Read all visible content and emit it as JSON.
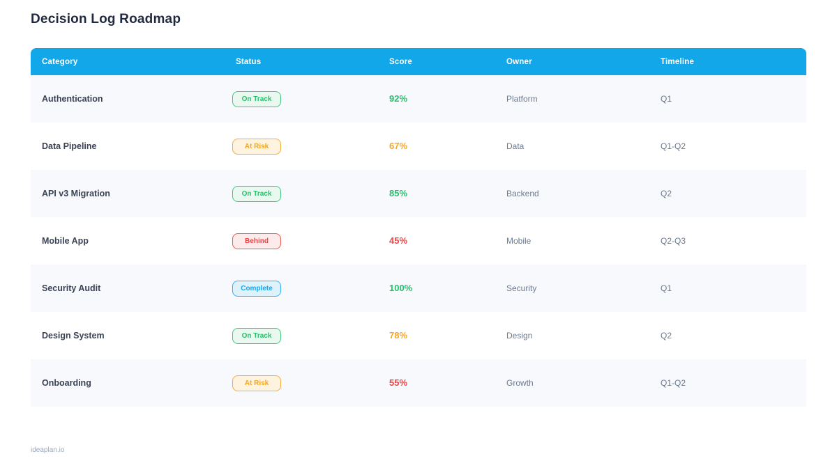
{
  "page": {
    "title": "Decision Log Roadmap",
    "footer": "ideaplan.io"
  },
  "colors": {
    "header_background": "#12a7e9",
    "row_stripe": "#f7f9fc",
    "status_green": "#27c06a",
    "status_orange": "#f5a623",
    "status_red": "#ee4444",
    "status_blue": "#18a6ec"
  },
  "table": {
    "columns": [
      "Category",
      "Status",
      "Score",
      "Owner",
      "Timeline"
    ],
    "rows": [
      {
        "category": "Authentication",
        "status": "On Track",
        "status_type": "on-track",
        "score": "92%",
        "score_color": "green",
        "owner": "Platform",
        "timeline": "Q1"
      },
      {
        "category": "Data Pipeline",
        "status": "At Risk",
        "status_type": "at-risk",
        "score": "67%",
        "score_color": "orange",
        "owner": "Data",
        "timeline": "Q1-Q2"
      },
      {
        "category": "API v3 Migration",
        "status": "On Track",
        "status_type": "on-track",
        "score": "85%",
        "score_color": "green",
        "owner": "Backend",
        "timeline": "Q2"
      },
      {
        "category": "Mobile App",
        "status": "Behind",
        "status_type": "behind",
        "score": "45%",
        "score_color": "red",
        "owner": "Mobile",
        "timeline": "Q2-Q3"
      },
      {
        "category": "Security Audit",
        "status": "Complete",
        "status_type": "complete",
        "score": "100%",
        "score_color": "green",
        "owner": "Security",
        "timeline": "Q1"
      },
      {
        "category": "Design System",
        "status": "On Track",
        "status_type": "on-track",
        "score": "78%",
        "score_color": "orange",
        "owner": "Design",
        "timeline": "Q2"
      },
      {
        "category": "Onboarding",
        "status": "At Risk",
        "status_type": "at-risk",
        "score": "55%",
        "score_color": "red",
        "owner": "Growth",
        "timeline": "Q1-Q2"
      }
    ]
  }
}
